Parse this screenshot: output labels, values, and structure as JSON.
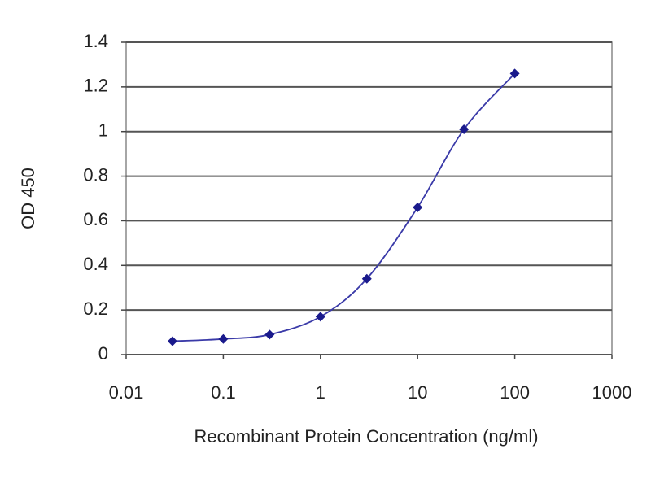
{
  "chart_data": {
    "type": "line",
    "xlabel": "Recombinant Protein Concentration (ng/ml)",
    "ylabel": "OD 450",
    "x": [
      0.03,
      0.1,
      0.3,
      1,
      3,
      10,
      30,
      100
    ],
    "series": [
      {
        "color": "#1a1a8c",
        "values": [
          0.06,
          0.07,
          0.09,
          0.17,
          0.34,
          0.66,
          1.01,
          1.26
        ]
      }
    ],
    "xscale": "log",
    "xlim": [
      0.01,
      1000
    ],
    "xticks": [
      0.01,
      0.1,
      1,
      10,
      100,
      1000
    ],
    "ylim": [
      0,
      1.4
    ],
    "yticks": [
      0,
      0.2,
      0.4,
      0.6,
      0.8,
      1,
      1.2,
      1.4
    ],
    "grid": true
  }
}
